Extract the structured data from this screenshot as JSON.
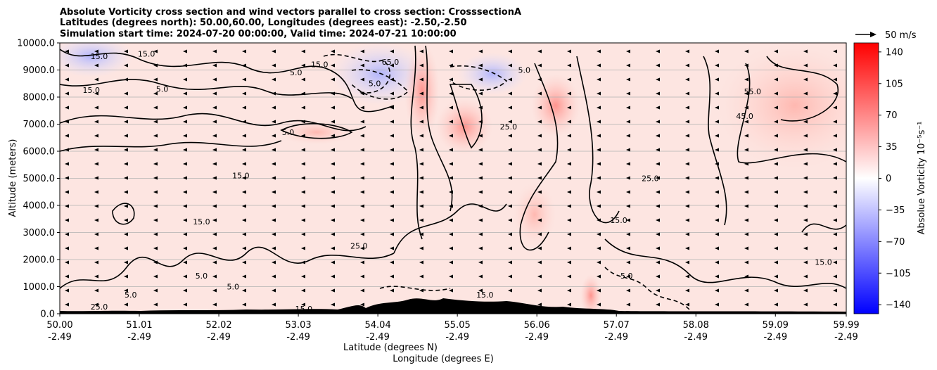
{
  "chart_data": {
    "type": "heatmap",
    "title_lines": [
      "Absolute Vorticity cross section and wind vectors parallel to cross section: CrosssectionA",
      "Latitudes (degrees north): 50.00,60.00, Longitudes (degrees east): -2.50,-2.50",
      "Simulation start time: 2024-07-20 00:00:00, Valid time: 2024-07-21 10:00:00"
    ],
    "xlabel_line1": "Latitude (degrees N)",
    "xlabel_line2": "Longitude (degrees E)",
    "ylabel": "Altitude (meters)",
    "x_ticks": [
      {
        "lat": 50.0,
        "lat_label": "50.00",
        "lon_label": "-2.49"
      },
      {
        "lat": 51.01,
        "lat_label": "51.01",
        "lon_label": "-2.49"
      },
      {
        "lat": 52.02,
        "lat_label": "52.02",
        "lon_label": "-2.49"
      },
      {
        "lat": 53.03,
        "lat_label": "53.03",
        "lon_label": "-2.49"
      },
      {
        "lat": 54.04,
        "lat_label": "54.04",
        "lon_label": "-2.49"
      },
      {
        "lat": 55.05,
        "lat_label": "55.05",
        "lon_label": "-2.49"
      },
      {
        "lat": 56.06,
        "lat_label": "56.06",
        "lon_label": "-2.49"
      },
      {
        "lat": 57.07,
        "lat_label": "57.07",
        "lon_label": "-2.49"
      },
      {
        "lat": 58.08,
        "lat_label": "58.08",
        "lon_label": "-2.49"
      },
      {
        "lat": 59.09,
        "lat_label": "59.09",
        "lon_label": "-2.49"
      },
      {
        "lat": 59.99,
        "lat_label": "59.99",
        "lon_label": "-2.49"
      }
    ],
    "xlim": [
      50.0,
      59.99
    ],
    "y_ticks": [
      {
        "value": 0,
        "label": "0.0"
      },
      {
        "value": 1000,
        "label": "1000.0"
      },
      {
        "value": 2000,
        "label": "2000.0"
      },
      {
        "value": 3000,
        "label": "3000.0"
      },
      {
        "value": 4000,
        "label": "4000.0"
      },
      {
        "value": 5000,
        "label": "5000.0"
      },
      {
        "value": 6000,
        "label": "6000.0"
      },
      {
        "value": 7000,
        "label": "7000.0"
      },
      {
        "value": 8000,
        "label": "8000.0"
      },
      {
        "value": 9000,
        "label": "9000.0"
      },
      {
        "value": 10000,
        "label": "10000.0"
      }
    ],
    "ylim": [
      0,
      10000
    ],
    "grid": "horizontal",
    "colorbar": {
      "label": "Absolue Vorticity 10⁻⁵s⁻¹",
      "range": [
        -150,
        150
      ],
      "ticks": [
        {
          "value": 140,
          "label": "140"
        },
        {
          "value": 105,
          "label": "105"
        },
        {
          "value": 70,
          "label": "70"
        },
        {
          "value": 35,
          "label": "35"
        },
        {
          "value": 0,
          "label": "0"
        },
        {
          "value": -35,
          "label": "−35"
        },
        {
          "value": -70,
          "label": "−70"
        },
        {
          "value": -105,
          "label": "−105"
        },
        {
          "value": -140,
          "label": "−140"
        }
      ],
      "colormap": [
        "#0000ff",
        "#ffffff",
        "#ff0000"
      ]
    },
    "quiver_key": {
      "label": "50 m/s",
      "value": 50
    },
    "contour_labels": [
      {
        "lat": 50.5,
        "alt": 9400,
        "text": "15.0"
      },
      {
        "lat": 51.1,
        "alt": 9500,
        "text": "15.0"
      },
      {
        "lat": 50.4,
        "alt": 8150,
        "text": "15.0"
      },
      {
        "lat": 51.3,
        "alt": 8200,
        "text": "5.0"
      },
      {
        "lat": 52.9,
        "alt": 6600,
        "text": "5.0"
      },
      {
        "lat": 53.3,
        "alt": 9100,
        "text": "15.0"
      },
      {
        "lat": 53.0,
        "alt": 8800,
        "text": "5.0"
      },
      {
        "lat": 54.0,
        "alt": 8400,
        "text": "5.0"
      },
      {
        "lat": 54.2,
        "alt": 9200,
        "text": "65.0"
      },
      {
        "lat": 55.9,
        "alt": 8900,
        "text": "5.0"
      },
      {
        "lat": 58.8,
        "alt": 8100,
        "text": "55.0"
      },
      {
        "lat": 58.7,
        "alt": 7200,
        "text": "45.0"
      },
      {
        "lat": 55.7,
        "alt": 6800,
        "text": "25.0"
      },
      {
        "lat": 52.3,
        "alt": 5000,
        "text": "15.0"
      },
      {
        "lat": 57.5,
        "alt": 4900,
        "text": "25.0"
      },
      {
        "lat": 51.8,
        "alt": 3300,
        "text": "15.0"
      },
      {
        "lat": 57.1,
        "alt": 3350,
        "text": "15.0"
      },
      {
        "lat": 53.8,
        "alt": 2400,
        "text": "25.0"
      },
      {
        "lat": 59.7,
        "alt": 1800,
        "text": "15.0"
      },
      {
        "lat": 57.2,
        "alt": 1300,
        "text": "5.0"
      },
      {
        "lat": 51.8,
        "alt": 1300,
        "text": "5.0"
      },
      {
        "lat": 52.2,
        "alt": 900,
        "text": "5.0"
      },
      {
        "lat": 50.9,
        "alt": 600,
        "text": "5.0"
      },
      {
        "lat": 55.4,
        "alt": 600,
        "text": "15.0"
      },
      {
        "lat": 53.1,
        "alt": 80,
        "text": "15.0"
      },
      {
        "lat": 50.5,
        "alt": 150,
        "text": "25.0"
      }
    ]
  }
}
